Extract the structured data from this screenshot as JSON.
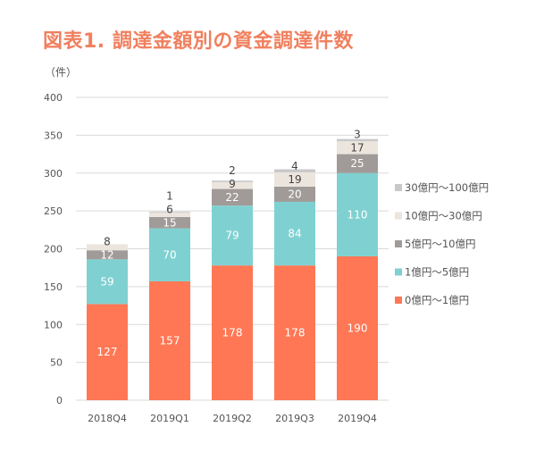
{
  "chart_data": {
    "type": "bar",
    "stacked": true,
    "title": "図表1. 調達金額別の資金調達件数",
    "ylabel": "（件）",
    "xlabel": "",
    "ylim": [
      0,
      400
    ],
    "yticks": [
      0,
      50,
      100,
      150,
      200,
      250,
      300,
      350,
      400
    ],
    "grid": true,
    "legend_position": "right",
    "categories": [
      "2018Q4",
      "2019Q1",
      "2019Q2",
      "2019Q3",
      "2019Q4"
    ],
    "series": [
      {
        "name": "0億円〜1億円",
        "values": [
          127,
          157,
          178,
          178,
          190
        ],
        "color": "#ff7755",
        "label_color": "#ffffff"
      },
      {
        "name": "1億円〜5億円",
        "values": [
          59,
          70,
          79,
          84,
          110
        ],
        "color": "#7fd1d1",
        "label_color": "#ffffff"
      },
      {
        "name": "5億円〜10億円",
        "values": [
          12,
          15,
          22,
          20,
          25
        ],
        "color": "#a09b99",
        "label_color": "#ffffff"
      },
      {
        "name": "10億円〜30億円",
        "values": [
          8,
          6,
          9,
          19,
          17
        ],
        "color": "#ebe5dd",
        "label_color": "#444444"
      },
      {
        "name": "30億円〜100億円",
        "values": [
          0,
          1,
          2,
          4,
          3
        ],
        "color": "#c8c8c8",
        "label_color": "#444444"
      }
    ]
  }
}
